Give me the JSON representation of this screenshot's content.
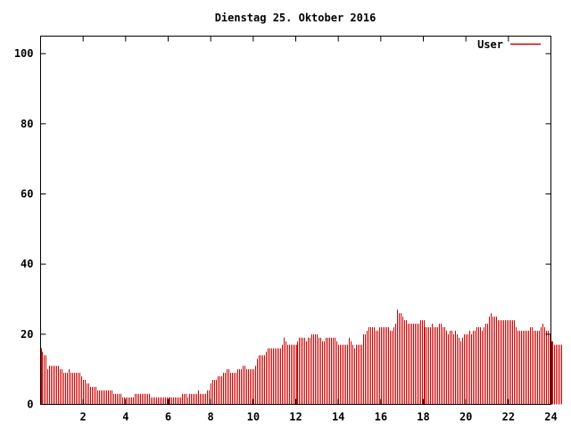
{
  "chart_data": {
    "type": "bar",
    "title": "Dienstag 25. Oktober 2016",
    "xlabel": "",
    "ylabel": "",
    "xlim": [
      0,
      24
    ],
    "ylim": [
      0,
      105
    ],
    "x_ticks": [
      "2",
      "4",
      "6",
      "8",
      "10",
      "12",
      "14",
      "16",
      "18",
      "20",
      "22",
      "24"
    ],
    "y_ticks": [
      "0",
      "20",
      "40",
      "60",
      "80",
      "100"
    ],
    "grid": false,
    "legend_position": "top-right",
    "series": [
      {
        "name": "User",
        "color": "#cc0000",
        "interval_minutes": 5,
        "values": [
          16,
          15,
          14,
          14,
          10,
          11,
          11,
          11,
          11,
          11,
          11,
          10,
          10,
          9,
          9,
          9,
          10,
          9,
          9,
          9,
          9,
          9,
          9,
          8,
          7,
          7,
          6,
          6,
          5,
          5,
          5,
          5,
          4,
          4,
          4,
          4,
          4,
          4,
          4,
          4,
          4,
          3,
          3,
          3,
          3,
          3,
          2,
          2,
          2,
          2,
          2,
          2,
          2,
          3,
          3,
          3,
          3,
          3,
          3,
          3,
          3,
          3,
          2,
          2,
          2,
          2,
          2,
          2,
          2,
          2,
          2,
          2,
          2,
          2,
          2,
          2,
          2,
          2,
          2,
          2,
          3,
          3,
          3,
          2,
          3,
          3,
          3,
          3,
          3,
          4,
          3,
          3,
          3,
          3,
          4,
          4,
          6,
          7,
          7,
          7,
          8,
          8,
          8,
          9,
          9,
          10,
          10,
          9,
          9,
          9,
          9,
          10,
          10,
          10,
          11,
          11,
          10,
          10,
          10,
          10,
          10,
          11,
          13,
          14,
          14,
          14,
          14,
          15,
          16,
          16,
          16,
          16,
          16,
          16,
          16,
          16,
          17,
          19,
          18,
          17,
          17,
          17,
          17,
          17,
          17,
          18,
          19,
          19,
          19,
          19,
          18,
          19,
          19,
          20,
          20,
          20,
          20,
          19,
          19,
          18,
          18,
          19,
          19,
          19,
          19,
          19,
          19,
          18,
          17,
          17,
          17,
          17,
          17,
          17,
          19,
          18,
          17,
          16,
          17,
          17,
          17,
          17,
          20,
          20,
          21,
          22,
          22,
          22,
          22,
          21,
          21,
          22,
          22,
          22,
          22,
          22,
          22,
          21,
          21,
          22,
          23,
          27,
          26,
          26,
          25,
          24,
          24,
          23,
          23,
          23,
          23,
          23,
          23,
          23,
          24,
          24,
          24,
          22,
          22,
          22,
          22,
          23,
          22,
          22,
          22,
          23,
          23,
          22,
          22,
          21,
          20,
          21,
          21,
          20,
          21,
          20,
          19,
          18,
          19,
          20,
          20,
          20,
          21,
          20,
          21,
          21,
          22,
          22,
          22,
          21,
          22,
          23,
          23,
          25,
          26,
          25,
          25,
          25,
          24,
          24,
          24,
          24,
          24,
          24,
          24,
          24,
          24,
          24,
          22,
          21,
          21,
          21,
          21,
          21,
          21,
          21,
          22,
          22,
          21,
          21,
          21,
          21,
          22,
          23,
          22,
          21,
          21,
          20,
          18,
          18,
          17,
          17,
          17,
          17,
          17
        ]
      }
    ]
  }
}
